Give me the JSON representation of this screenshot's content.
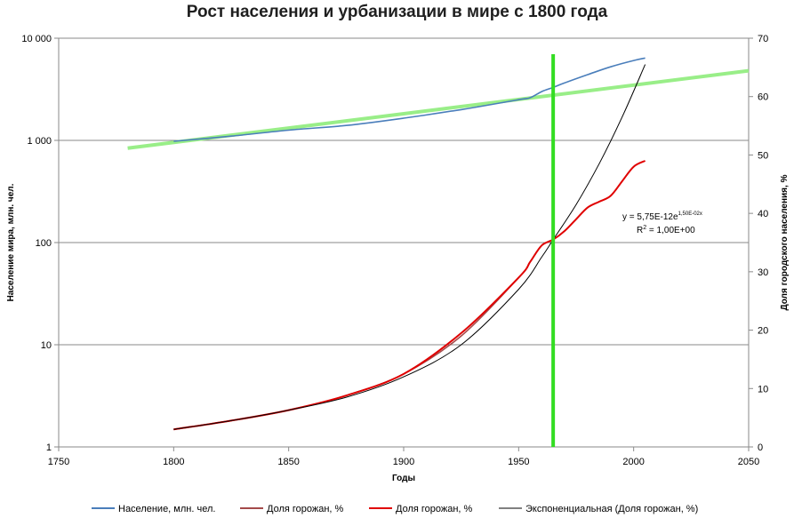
{
  "chart_data": {
    "type": "line",
    "title": "Рост населения и урбанизации в мире с 1800 года",
    "xlabel": "Годы",
    "ylabel_left": "Население мира, млн. чел.",
    "ylabel_right": "Доля городского населения, %",
    "xlim": [
      1750,
      2050
    ],
    "ylim_left": [
      1,
      10000
    ],
    "ylim_right": [
      0,
      70
    ],
    "left_scale": "log",
    "grid": "horizontal",
    "legend_position": "bottom",
    "x_ticks": [
      "1750",
      "1800",
      "1850",
      "1900",
      "1950",
      "2000",
      "2050"
    ],
    "y_left_ticks": [
      "1",
      "10",
      "100",
      "1 000",
      "10 000"
    ],
    "y_right_ticks": [
      "0",
      "10",
      "20",
      "30",
      "40",
      "50",
      "60",
      "70"
    ],
    "series": [
      {
        "name": "Население, млн. чел.",
        "axis": "left",
        "color": "#4a7ebb",
        "x": [
          1800,
          1825,
          1850,
          1875,
          1900,
          1925,
          1950,
          1955,
          1960,
          1965,
          1970,
          1980,
          1990,
          2000,
          2005
        ],
        "values": [
          980,
          1100,
          1260,
          1400,
          1650,
          2000,
          2500,
          2620,
          3000,
          3300,
          3650,
          4400,
          5250,
          6050,
          6400
        ]
      },
      {
        "name": "Доля горожан, %",
        "axis": "right",
        "color": "#a44a4a",
        "x": [
          1800,
          1825,
          1850,
          1875,
          1900,
          1925,
          1950,
          1955,
          1960,
          1965
        ],
        "values": [
          3,
          4.5,
          6.3,
          8.8,
          12.5,
          19,
          29,
          31.7,
          34.5,
          35.5
        ]
      },
      {
        "name": "Доля горожан, %",
        "axis": "right",
        "color": "#e00000",
        "x": [
          1800,
          1825,
          1850,
          1875,
          1900,
          1925,
          1950,
          1955,
          1960,
          1965,
          1970,
          1975,
          1980,
          1985,
          1990,
          1995,
          2000,
          2005
        ],
        "values": [
          3,
          4.5,
          6.3,
          8.8,
          12.5,
          19.5,
          29,
          31.7,
          34.5,
          35.5,
          37,
          39,
          41,
          42,
          43,
          45.5,
          48,
          49
        ]
      },
      {
        "name": "Экспоненциальная (Доля горожан, %)",
        "axis": "right",
        "color": "#000000",
        "x": [
          1800,
          1825,
          1850,
          1875,
          1900,
          1925,
          1950,
          1960,
          1965,
          1975,
          1985,
          1995,
          2005
        ],
        "values": [
          3.0,
          4.5,
          6.3,
          8.5,
          12,
          17.5,
          27,
          32.5,
          35.5,
          41.5,
          48.5,
          56.5,
          65.5
        ]
      }
    ],
    "green_trend_line": {
      "color": "#99ee88",
      "x": [
        1780,
        2050
      ],
      "values": [
        840,
        4800
      ],
      "axis": "left"
    },
    "green_vertical_line": {
      "color": "#33dd22",
      "x": 1965
    },
    "trendline_equation": {
      "line1_base": "y = 5,75E-12e",
      "line1_exponent": "1,50E-02x",
      "line2_base": "R",
      "line2_sup": "2",
      "line2_rest": " = 1,00E+00"
    }
  }
}
